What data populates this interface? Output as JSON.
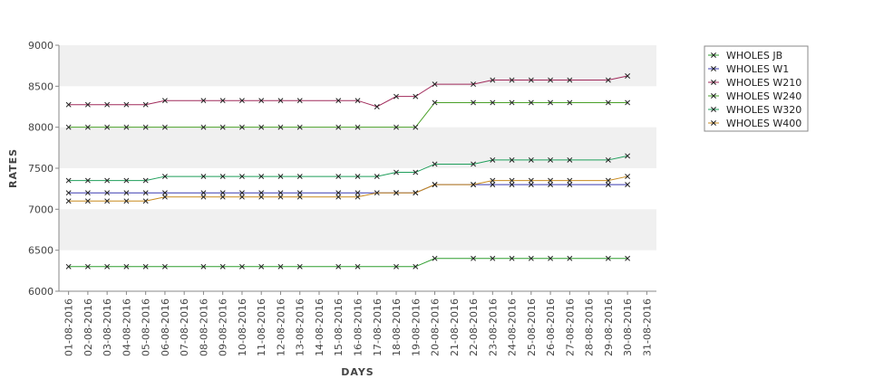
{
  "chart_data": {
    "type": "line",
    "title": "",
    "xlabel": "DAYS",
    "ylabel": "RATES",
    "ylim": [
      6000,
      9000
    ],
    "yticks": [
      "6000",
      "6500",
      "7000",
      "7500",
      "8000",
      "8500",
      "9000"
    ],
    "grid": "horizontal bands",
    "legend_position": "top-right",
    "categories": [
      "01-08-2016",
      "02-08-2016",
      "03-08-2016",
      "04-08-2016",
      "05-08-2016",
      "06-08-2016",
      "07-08-2016",
      "08-08-2016",
      "09-08-2016",
      "10-08-2016",
      "11-08-2016",
      "12-08-2016",
      "13-08-2016",
      "14-08-2016",
      "15-08-2016",
      "16-08-2016",
      "17-08-2016",
      "18-08-2016",
      "19-08-2016",
      "20-08-2016",
      "21-08-2016",
      "22-08-2016",
      "23-08-2016",
      "24-08-2016",
      "25-08-2016",
      "26-08-2016",
      "27-08-2016",
      "28-08-2016",
      "29-08-2016",
      "30-08-2016",
      "31-08-2016"
    ],
    "series": [
      {
        "name": "WHOLES JB",
        "color": "#2e9e2e",
        "values": [
          6300,
          6300,
          6300,
          6300,
          6300,
          6300,
          null,
          6300,
          6300,
          6300,
          6300,
          6300,
          6300,
          null,
          6300,
          6300,
          null,
          6300,
          6300,
          6400,
          null,
          6400,
          6400,
          6400,
          6400,
          6400,
          6400,
          null,
          6400,
          6400,
          null
        ]
      },
      {
        "name": "WHOLES W1",
        "color": "#3b3bb0",
        "values": [
          7200,
          7200,
          7200,
          7200,
          7200,
          7200,
          null,
          7200,
          7200,
          7200,
          7200,
          7200,
          7200,
          null,
          7200,
          7200,
          null,
          7200,
          7200,
          7300,
          null,
          7300,
          7300,
          7300,
          7300,
          7300,
          7300,
          null,
          7300,
          7300,
          null
        ]
      },
      {
        "name": "WHOLES W210",
        "color": "#a02a5a",
        "values": [
          8275,
          8275,
          8275,
          8275,
          8275,
          8325,
          null,
          8325,
          8325,
          8325,
          8325,
          8325,
          8325,
          null,
          8325,
          8325,
          8250,
          8375,
          8375,
          8525,
          null,
          8525,
          8575,
          8575,
          8575,
          8575,
          8575,
          null,
          8575,
          8625,
          null
        ]
      },
      {
        "name": "WHOLES W240",
        "color": "#4aa028",
        "values": [
          8000,
          8000,
          8000,
          8000,
          8000,
          8000,
          null,
          8000,
          8000,
          8000,
          8000,
          8000,
          8000,
          null,
          8000,
          8000,
          null,
          8000,
          8000,
          8300,
          null,
          8300,
          8300,
          8300,
          8300,
          8300,
          8300,
          null,
          8300,
          8300,
          null
        ]
      },
      {
        "name": "WHOLES W320",
        "color": "#1e9e5a",
        "values": [
          7350,
          7350,
          7350,
          7350,
          7350,
          7400,
          null,
          7400,
          7400,
          7400,
          7400,
          7400,
          7400,
          null,
          7400,
          7400,
          7400,
          7450,
          7450,
          7550,
          null,
          7550,
          7600,
          7600,
          7600,
          7600,
          7600,
          null,
          7600,
          7650,
          null
        ]
      },
      {
        "name": "WHOLES W400",
        "color": "#c88a1e",
        "values": [
          7100,
          7100,
          7100,
          7100,
          7100,
          7150,
          null,
          7150,
          7150,
          7150,
          7150,
          7150,
          7150,
          null,
          7150,
          7150,
          7200,
          7200,
          7200,
          7300,
          null,
          7300,
          7350,
          7350,
          7350,
          7350,
          7350,
          null,
          7350,
          7400,
          null
        ]
      }
    ]
  }
}
